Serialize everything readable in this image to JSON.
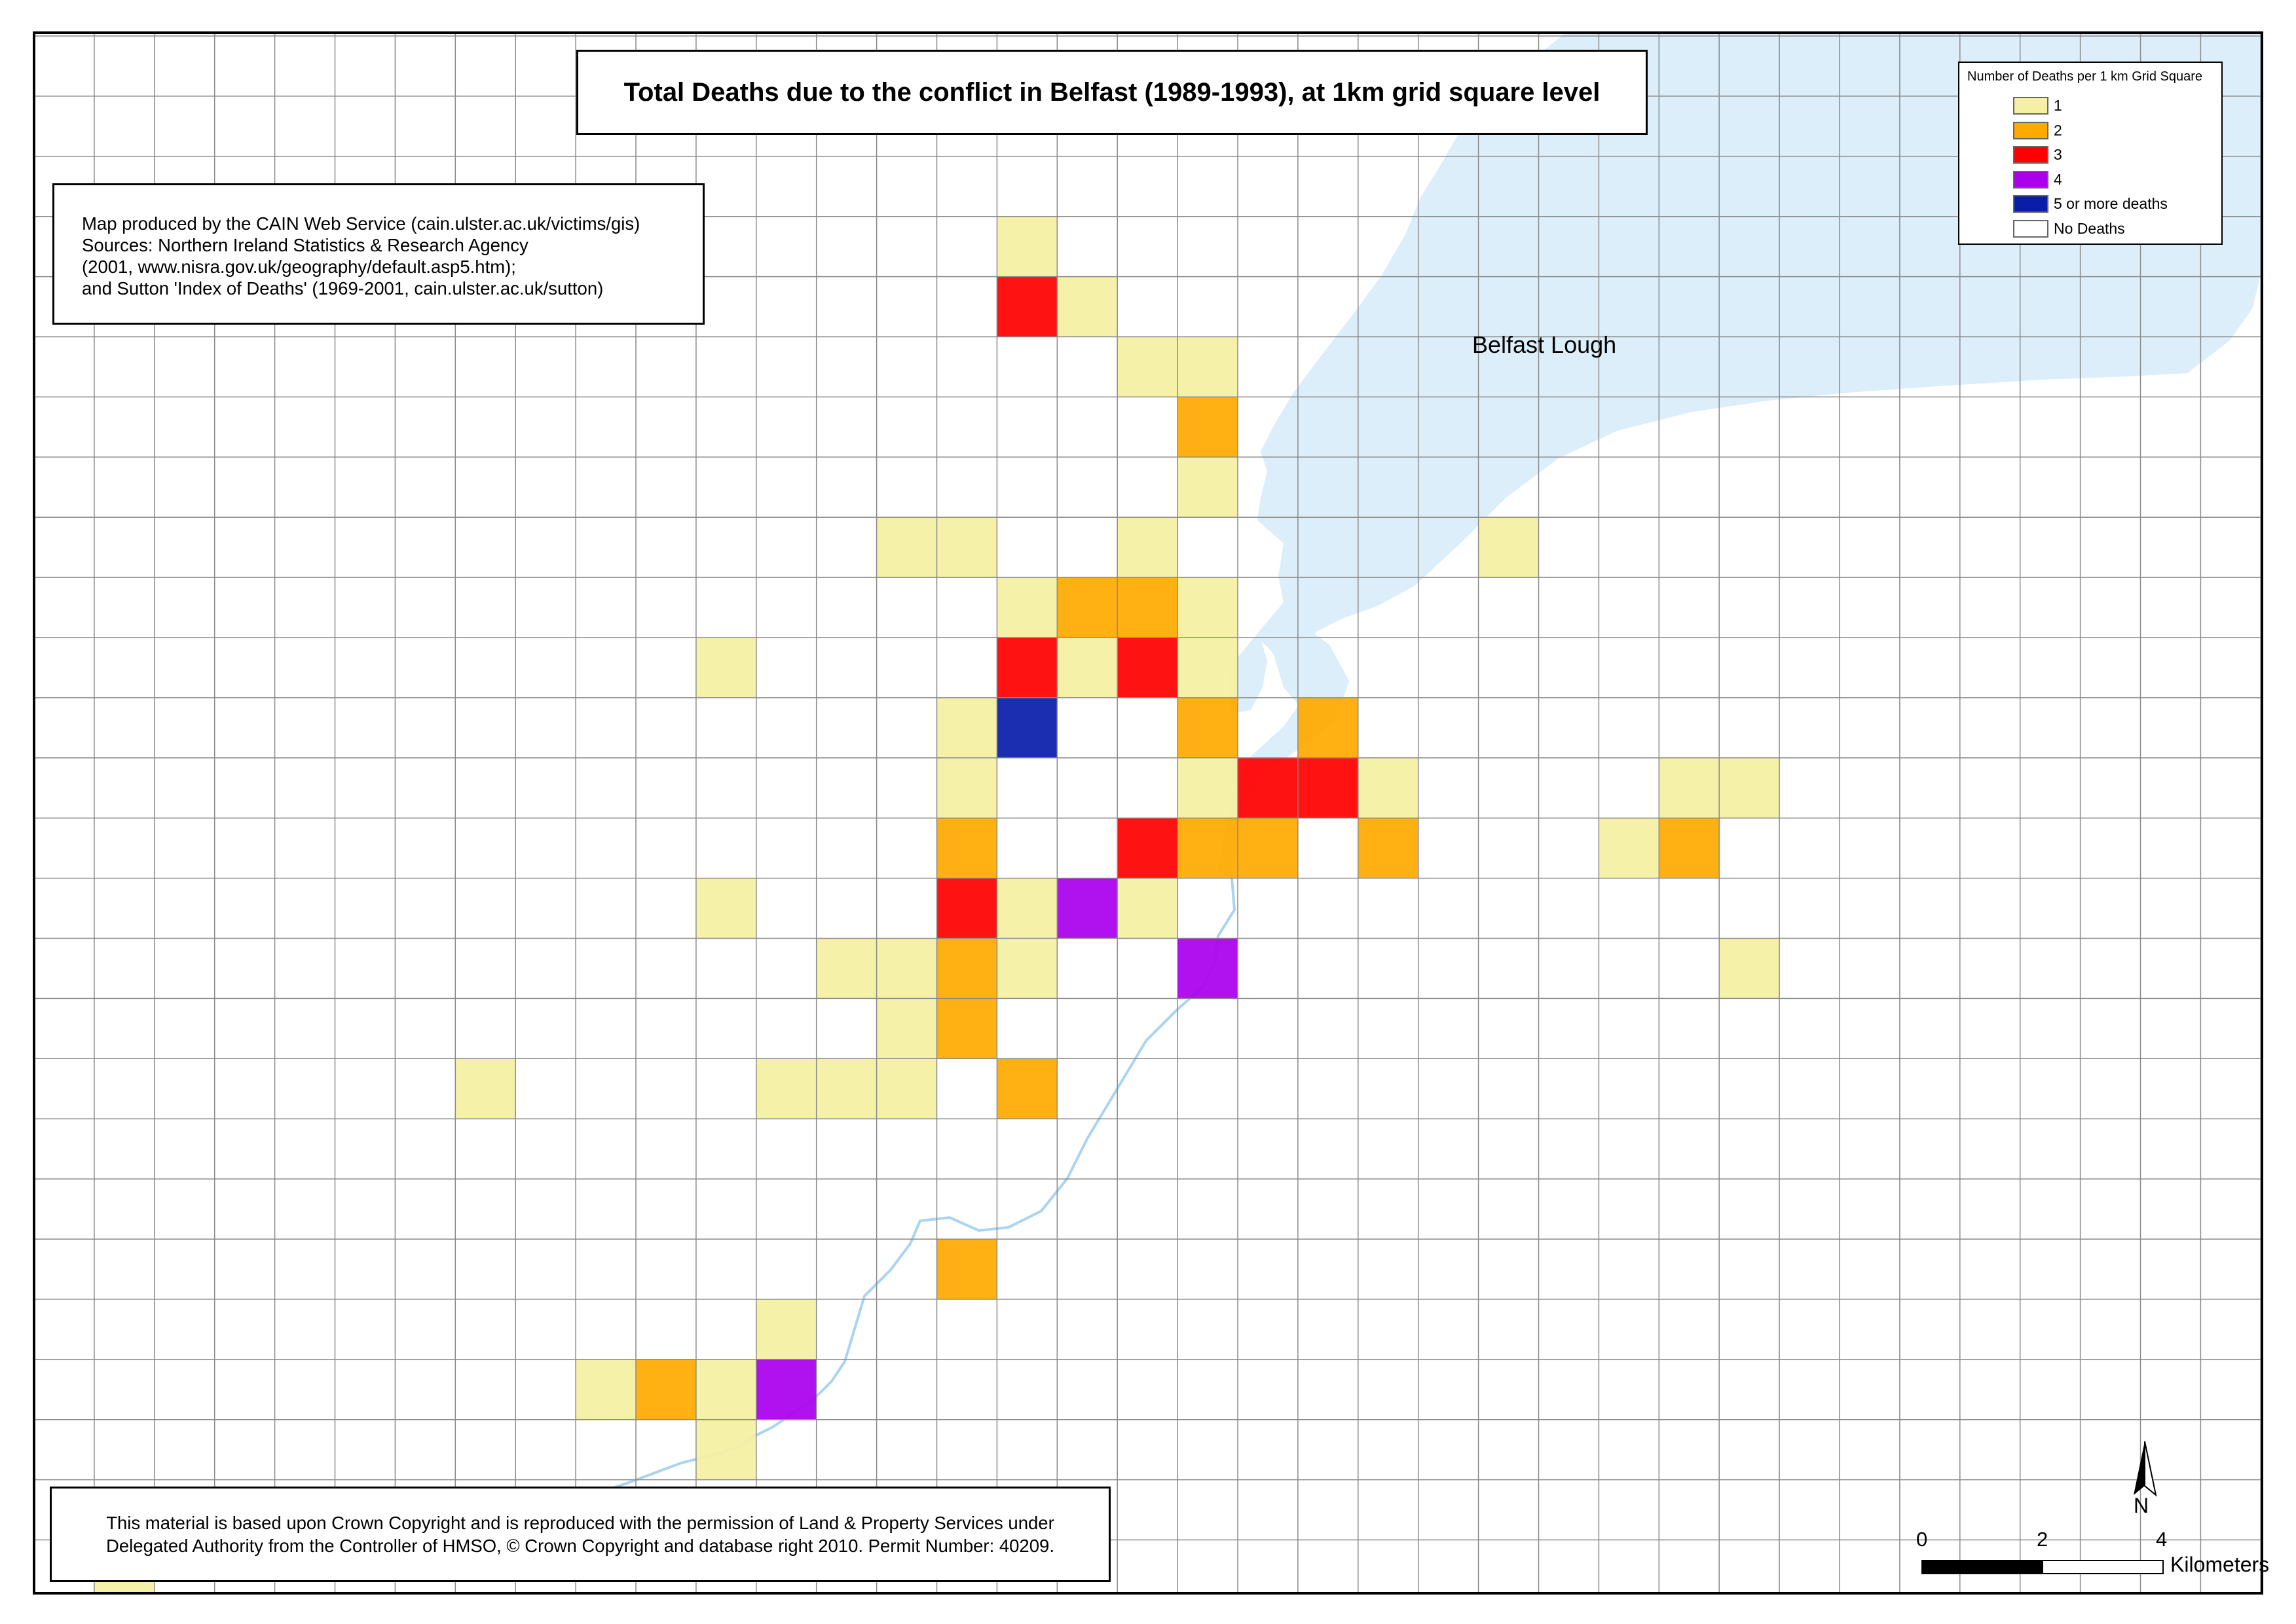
{
  "title": "Total Deaths due to the conflict in Belfast (1989-1993), at 1km grid square level",
  "credit": {
    "lines": [
      "Map produced by the CAIN Web Service (cain.ulster.ac.uk/victims/gis)",
      "Sources: Northern Ireland Statistics & Research Agency",
      "(2001, www.nisra.gov.uk/geography/default.asp5.htm);",
      "and Sutton 'Index of Deaths' (1969-2001, cain.ulster.ac.uk/sutton)"
    ]
  },
  "legend": {
    "title": "Number of Deaths per 1 km Grid Square",
    "items": [
      {
        "label": "1",
        "color": "#F5F0A3"
      },
      {
        "label": "2",
        "color": "#FFAA00"
      },
      {
        "label": "3",
        "color": "#FF0000"
      },
      {
        "label": "4",
        "color": "#AA00EE"
      },
      {
        "label": "5 or more deaths",
        "color": "#0A1DAA"
      },
      {
        "label": "No Deaths",
        "color": "#FFFFFF"
      }
    ]
  },
  "water_label": "Belfast Lough",
  "north_arrow": "N",
  "scale_bar": {
    "ticks": [
      "0",
      "2",
      "4"
    ],
    "units": "Kilometers"
  },
  "copyright": {
    "lines": [
      "This material is based upon Crown Copyright and is reproduced with the permission of Land & Property Services under",
      "Delegated Authority from the Controller of HMSO, © Crown Copyright and database right 2010. Permit Number: 40209."
    ]
  },
  "grid": {
    "columns": 37,
    "rows": 26,
    "cells": [
      {
        "col": 16,
        "row": 3,
        "deaths": 1
      },
      {
        "col": 16,
        "row": 4,
        "deaths": 3
      },
      {
        "col": 17,
        "row": 4,
        "deaths": 1
      },
      {
        "col": 18,
        "row": 5,
        "deaths": 1
      },
      {
        "col": 19,
        "row": 5,
        "deaths": 1
      },
      {
        "col": 19,
        "row": 6,
        "deaths": 2
      },
      {
        "col": 19,
        "row": 7,
        "deaths": 1
      },
      {
        "col": 14,
        "row": 8,
        "deaths": 1
      },
      {
        "col": 15,
        "row": 8,
        "deaths": 1
      },
      {
        "col": 18,
        "row": 8,
        "deaths": 1
      },
      {
        "col": 24,
        "row": 8,
        "deaths": 1
      },
      {
        "col": 16,
        "row": 9,
        "deaths": 1
      },
      {
        "col": 17,
        "row": 9,
        "deaths": 2
      },
      {
        "col": 18,
        "row": 9,
        "deaths": 2
      },
      {
        "col": 19,
        "row": 9,
        "deaths": 1
      },
      {
        "col": 11,
        "row": 10,
        "deaths": 1
      },
      {
        "col": 16,
        "row": 10,
        "deaths": 3
      },
      {
        "col": 17,
        "row": 10,
        "deaths": 1
      },
      {
        "col": 18,
        "row": 10,
        "deaths": 3
      },
      {
        "col": 19,
        "row": 10,
        "deaths": 1
      },
      {
        "col": 15,
        "row": 11,
        "deaths": 1
      },
      {
        "col": 16,
        "row": 11,
        "deaths": 5
      },
      {
        "col": 19,
        "row": 11,
        "deaths": 2
      },
      {
        "col": 21,
        "row": 11,
        "deaths": 2
      },
      {
        "col": 15,
        "row": 12,
        "deaths": 1
      },
      {
        "col": 19,
        "row": 12,
        "deaths": 1
      },
      {
        "col": 20,
        "row": 12,
        "deaths": 3
      },
      {
        "col": 21,
        "row": 12,
        "deaths": 3
      },
      {
        "col": 22,
        "row": 12,
        "deaths": 1
      },
      {
        "col": 27,
        "row": 12,
        "deaths": 1
      },
      {
        "col": 28,
        "row": 12,
        "deaths": 1
      },
      {
        "col": 15,
        "row": 13,
        "deaths": 2
      },
      {
        "col": 18,
        "row": 13,
        "deaths": 3
      },
      {
        "col": 19,
        "row": 13,
        "deaths": 2
      },
      {
        "col": 20,
        "row": 13,
        "deaths": 2
      },
      {
        "col": 22,
        "row": 13,
        "deaths": 2
      },
      {
        "col": 26,
        "row": 13,
        "deaths": 1
      },
      {
        "col": 27,
        "row": 13,
        "deaths": 2
      },
      {
        "col": 11,
        "row": 14,
        "deaths": 1
      },
      {
        "col": 15,
        "row": 14,
        "deaths": 3
      },
      {
        "col": 16,
        "row": 14,
        "deaths": 1
      },
      {
        "col": 17,
        "row": 14,
        "deaths": 4
      },
      {
        "col": 18,
        "row": 14,
        "deaths": 1
      },
      {
        "col": 13,
        "row": 15,
        "deaths": 1
      },
      {
        "col": 14,
        "row": 15,
        "deaths": 1
      },
      {
        "col": 15,
        "row": 15,
        "deaths": 2
      },
      {
        "col": 16,
        "row": 15,
        "deaths": 1
      },
      {
        "col": 19,
        "row": 15,
        "deaths": 4
      },
      {
        "col": 28,
        "row": 15,
        "deaths": 1
      },
      {
        "col": 14,
        "row": 16,
        "deaths": 1
      },
      {
        "col": 15,
        "row": 16,
        "deaths": 2
      },
      {
        "col": 7,
        "row": 17,
        "deaths": 1
      },
      {
        "col": 12,
        "row": 17,
        "deaths": 1
      },
      {
        "col": 13,
        "row": 17,
        "deaths": 1
      },
      {
        "col": 14,
        "row": 17,
        "deaths": 1
      },
      {
        "col": 16,
        "row": 17,
        "deaths": 2
      },
      {
        "col": 15,
        "row": 20,
        "deaths": 2
      },
      {
        "col": 12,
        "row": 21,
        "deaths": 1
      },
      {
        "col": 9,
        "row": 22,
        "deaths": 1
      },
      {
        "col": 10,
        "row": 22,
        "deaths": 2
      },
      {
        "col": 11,
        "row": 22,
        "deaths": 1
      },
      {
        "col": 12,
        "row": 22,
        "deaths": 4
      },
      {
        "col": 11,
        "row": 23,
        "deaths": 1
      },
      {
        "col": 1,
        "row": 25,
        "deaths": 1
      }
    ]
  }
}
